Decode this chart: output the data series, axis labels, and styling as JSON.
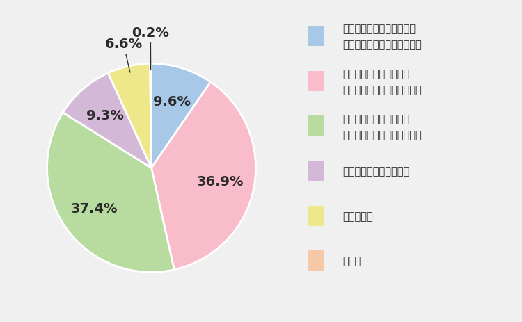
{
  "slices": [
    9.6,
    36.9,
    37.4,
    9.3,
    6.6,
    0.2
  ],
  "labels": [
    "9.6%",
    "36.9%",
    "37.4%",
    "9.3%",
    "6.6%",
    "0.2%"
  ],
  "colors": [
    "#a8c8e8",
    "#f9bccb",
    "#b8dba0",
    "#d4b8d8",
    "#eee88a",
    "#f5c8a8"
  ],
  "legend_labels": [
    "平均的な症状よりひどいと\n感じている（または感じた）",
    "平均的な症状の程度だと\n感じている（または感じた）",
    "平均的な症状より軽いと\n感じている（または感じた）",
    "症状を感じたことはない",
    "わからない",
    "その他"
  ],
  "bg_color": "#f0f0f0",
  "legend_bg": "#e8e8ee",
  "label_fontsize": 14,
  "legend_fontsize": 10.5
}
